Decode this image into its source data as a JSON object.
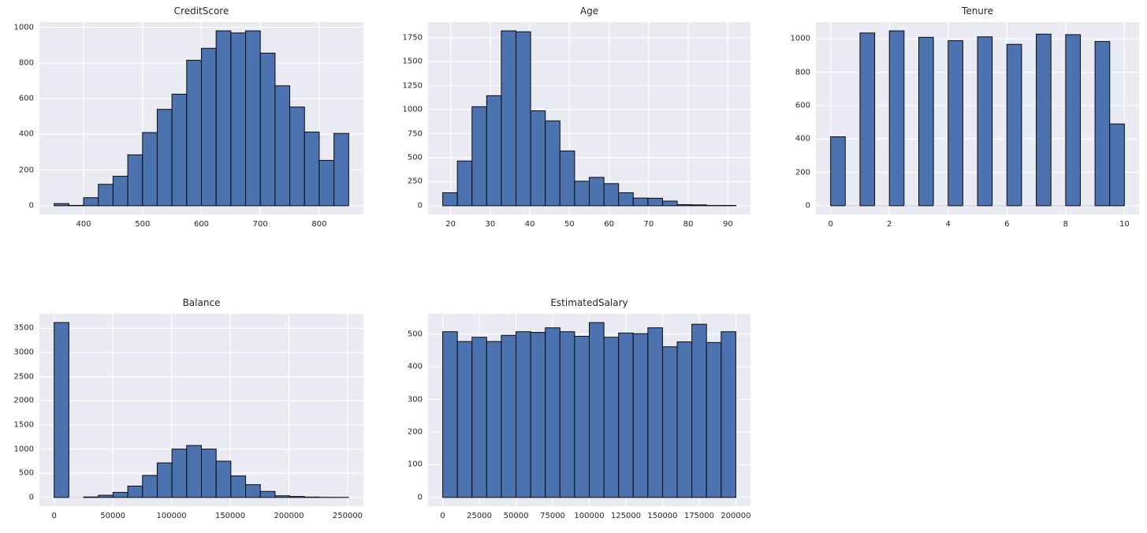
{
  "figure": {
    "background": "#ffffff",
    "plot_background": "#eaeaf2",
    "grid_color": "#ffffff",
    "bar_color": "#4c72b0",
    "bar_edge_color": "#0a0a0a",
    "zero_bin_line_color": "#c9c9d1",
    "text_color": "#262626"
  },
  "chart_data": [
    {
      "type": "bar",
      "title": "CreditScore",
      "xlabel": "",
      "ylabel": "",
      "grid": true,
      "legend": "none",
      "bin_start": 350,
      "bin_width": 25,
      "values": [
        12,
        2,
        45,
        120,
        165,
        285,
        410,
        540,
        625,
        815,
        882,
        980,
        968,
        980,
        855,
        672,
        553,
        413,
        254,
        405
      ],
      "xticks": [
        400,
        500,
        600,
        700,
        800
      ],
      "yticks": [
        0,
        200,
        400,
        600,
        800,
        1000
      ],
      "xlim": [
        325,
        875
      ],
      "ylim": [
        -49,
        1029
      ]
    },
    {
      "type": "bar",
      "title": "Age",
      "xlabel": "",
      "ylabel": "",
      "grid": true,
      "legend": "none",
      "bin_start": 18,
      "bin_width": 3.7,
      "values": [
        135,
        465,
        1030,
        1145,
        1820,
        1810,
        988,
        883,
        570,
        255,
        295,
        230,
        135,
        80,
        78,
        48,
        11,
        9,
        3,
        3
      ],
      "xticks": [
        20,
        30,
        40,
        50,
        60,
        70,
        80,
        90
      ],
      "yticks": [
        0,
        250,
        500,
        750,
        1000,
        1250,
        1500,
        1750
      ],
      "xlim": [
        14.3,
        95.7
      ],
      "ylim": [
        -91,
        1911
      ]
    },
    {
      "type": "bar",
      "title": "Tenure",
      "xlabel": "",
      "ylabel": "",
      "grid": true,
      "legend": "none",
      "bin_start": 0,
      "bin_width": 0.5,
      "values": [
        413,
        0,
        1035,
        0,
        1048,
        0,
        1009,
        0,
        989,
        0,
        1012,
        0,
        967,
        0,
        1028,
        0,
        1025,
        0,
        984,
        490
      ],
      "xticks": [
        0,
        2,
        4,
        6,
        8,
        10
      ],
      "yticks": [
        0,
        200,
        400,
        600,
        800,
        1000
      ],
      "xlim": [
        -0.5,
        10.5
      ],
      "ylim": [
        -52.4,
        1100.4
      ]
    },
    {
      "type": "bar",
      "title": "Balance",
      "xlabel": "",
      "ylabel": "",
      "grid": true,
      "legend": "none",
      "bin_start": 0,
      "bin_width": 12545,
      "values": [
        3618,
        0,
        10,
        45,
        105,
        235,
        455,
        715,
        1000,
        1075,
        1000,
        750,
        445,
        265,
        125,
        35,
        20,
        8,
        3,
        2
      ],
      "xticks": [
        0,
        50000,
        100000,
        150000,
        200000,
        250000
      ],
      "yticks": [
        0,
        500,
        1000,
        1500,
        2000,
        2500,
        3000,
        3500
      ],
      "xlim": [
        -12545,
        263443
      ],
      "ylim": [
        -181,
        3799
      ]
    },
    {
      "type": "bar",
      "title": "EstimatedSalary",
      "xlabel": "",
      "ylabel": "",
      "grid": true,
      "legend": "none",
      "bin_start": 0,
      "bin_width": 10000,
      "values": [
        507,
        477,
        490,
        477,
        496,
        507,
        505,
        519,
        507,
        493,
        535,
        490,
        503,
        501,
        519,
        461,
        476,
        530,
        474,
        507
      ],
      "xticks": [
        0,
        25000,
        50000,
        75000,
        100000,
        125000,
        150000,
        175000,
        200000
      ],
      "yticks": [
        0,
        100,
        200,
        300,
        400,
        500
      ],
      "xlim": [
        -10000,
        210000
      ],
      "ylim": [
        -26.8,
        561.8
      ]
    }
  ]
}
